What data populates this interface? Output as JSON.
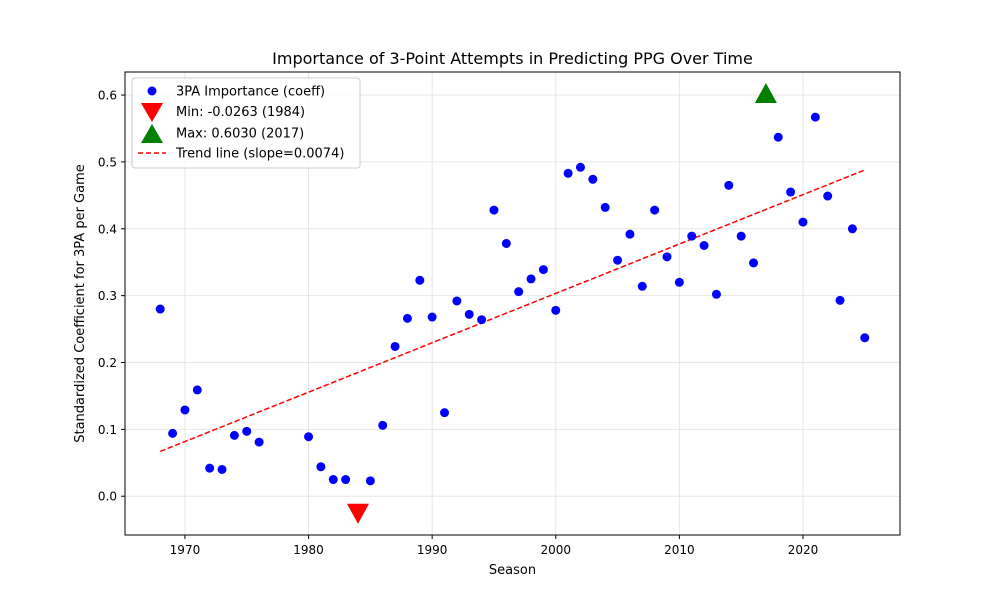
{
  "chart_data": {
    "type": "scatter",
    "title": "Importance of 3-Point Attempts in Predicting PPG Over Time",
    "xlabel": "Season",
    "ylabel": "Standardized Coefficient for 3PA per Game",
    "xlim": [
      1965.15,
      2027.85
    ],
    "ylim": [
      -0.058,
      0.6345
    ],
    "x_ticks": [
      1970,
      1980,
      1990,
      2000,
      2010,
      2020
    ],
    "y_ticks": [
      0.0,
      0.1,
      0.2,
      0.3,
      0.4,
      0.5,
      0.6
    ],
    "x_tick_labels": [
      "1970",
      "1980",
      "1990",
      "2000",
      "2010",
      "2020"
    ],
    "y_tick_labels": [
      "0.0",
      "0.1",
      "0.2",
      "0.3",
      "0.4",
      "0.5",
      "0.6"
    ],
    "grid": true,
    "legend_position": "top-left",
    "series": [
      {
        "name": "3PA Importance (coeff)",
        "marker": "circle",
        "color": "#0000ff",
        "points": [
          [
            1968,
            0.28
          ],
          [
            1969,
            0.094
          ],
          [
            1970,
            0.129
          ],
          [
            1971,
            0.159
          ],
          [
            1972,
            0.042
          ],
          [
            1973,
            0.04
          ],
          [
            1974,
            0.091
          ],
          [
            1975,
            0.097
          ],
          [
            1976,
            0.081
          ],
          [
            1980,
            0.089
          ],
          [
            1981,
            0.044
          ],
          [
            1982,
            0.025
          ],
          [
            1983,
            0.025
          ],
          [
            1985,
            0.023
          ],
          [
            1986,
            0.106
          ],
          [
            1987,
            0.224
          ],
          [
            1988,
            0.266
          ],
          [
            1989,
            0.323
          ],
          [
            1990,
            0.268
          ],
          [
            1991,
            0.125
          ],
          [
            1992,
            0.292
          ],
          [
            1993,
            0.272
          ],
          [
            1994,
            0.264
          ],
          [
            1995,
            0.428
          ],
          [
            1996,
            0.378
          ],
          [
            1997,
            0.306
          ],
          [
            1998,
            0.325
          ],
          [
            1999,
            0.339
          ],
          [
            2000,
            0.278
          ],
          [
            2001,
            0.483
          ],
          [
            2002,
            0.492
          ],
          [
            2003,
            0.474
          ],
          [
            2004,
            0.432
          ],
          [
            2005,
            0.353
          ],
          [
            2006,
            0.392
          ],
          [
            2007,
            0.314
          ],
          [
            2008,
            0.428
          ],
          [
            2009,
            0.358
          ],
          [
            2010,
            0.32
          ],
          [
            2011,
            0.389
          ],
          [
            2012,
            0.375
          ],
          [
            2013,
            0.302
          ],
          [
            2014,
            0.465
          ],
          [
            2015,
            0.389
          ],
          [
            2016,
            0.349
          ],
          [
            2018,
            0.537
          ],
          [
            2019,
            0.455
          ],
          [
            2020,
            0.41
          ],
          [
            2021,
            0.567
          ],
          [
            2022,
            0.449
          ],
          [
            2023,
            0.293
          ],
          [
            2024,
            0.4
          ],
          [
            2025,
            0.237
          ]
        ]
      },
      {
        "name": "Min: -0.0263 (1984)",
        "marker": "triangle-down",
        "color": "#ff0000",
        "points": [
          [
            1984,
            -0.0263
          ]
        ]
      },
      {
        "name": "Max: 0.6030 (2017)",
        "marker": "triangle-up",
        "color": "#008000",
        "points": [
          [
            2017,
            0.603
          ]
        ]
      },
      {
        "name": "Trend line (slope=0.0074)",
        "marker": "dashed-line",
        "color": "#ff0000",
        "points": [
          [
            1968,
            0.067
          ],
          [
            2025,
            0.488
          ]
        ]
      }
    ]
  }
}
